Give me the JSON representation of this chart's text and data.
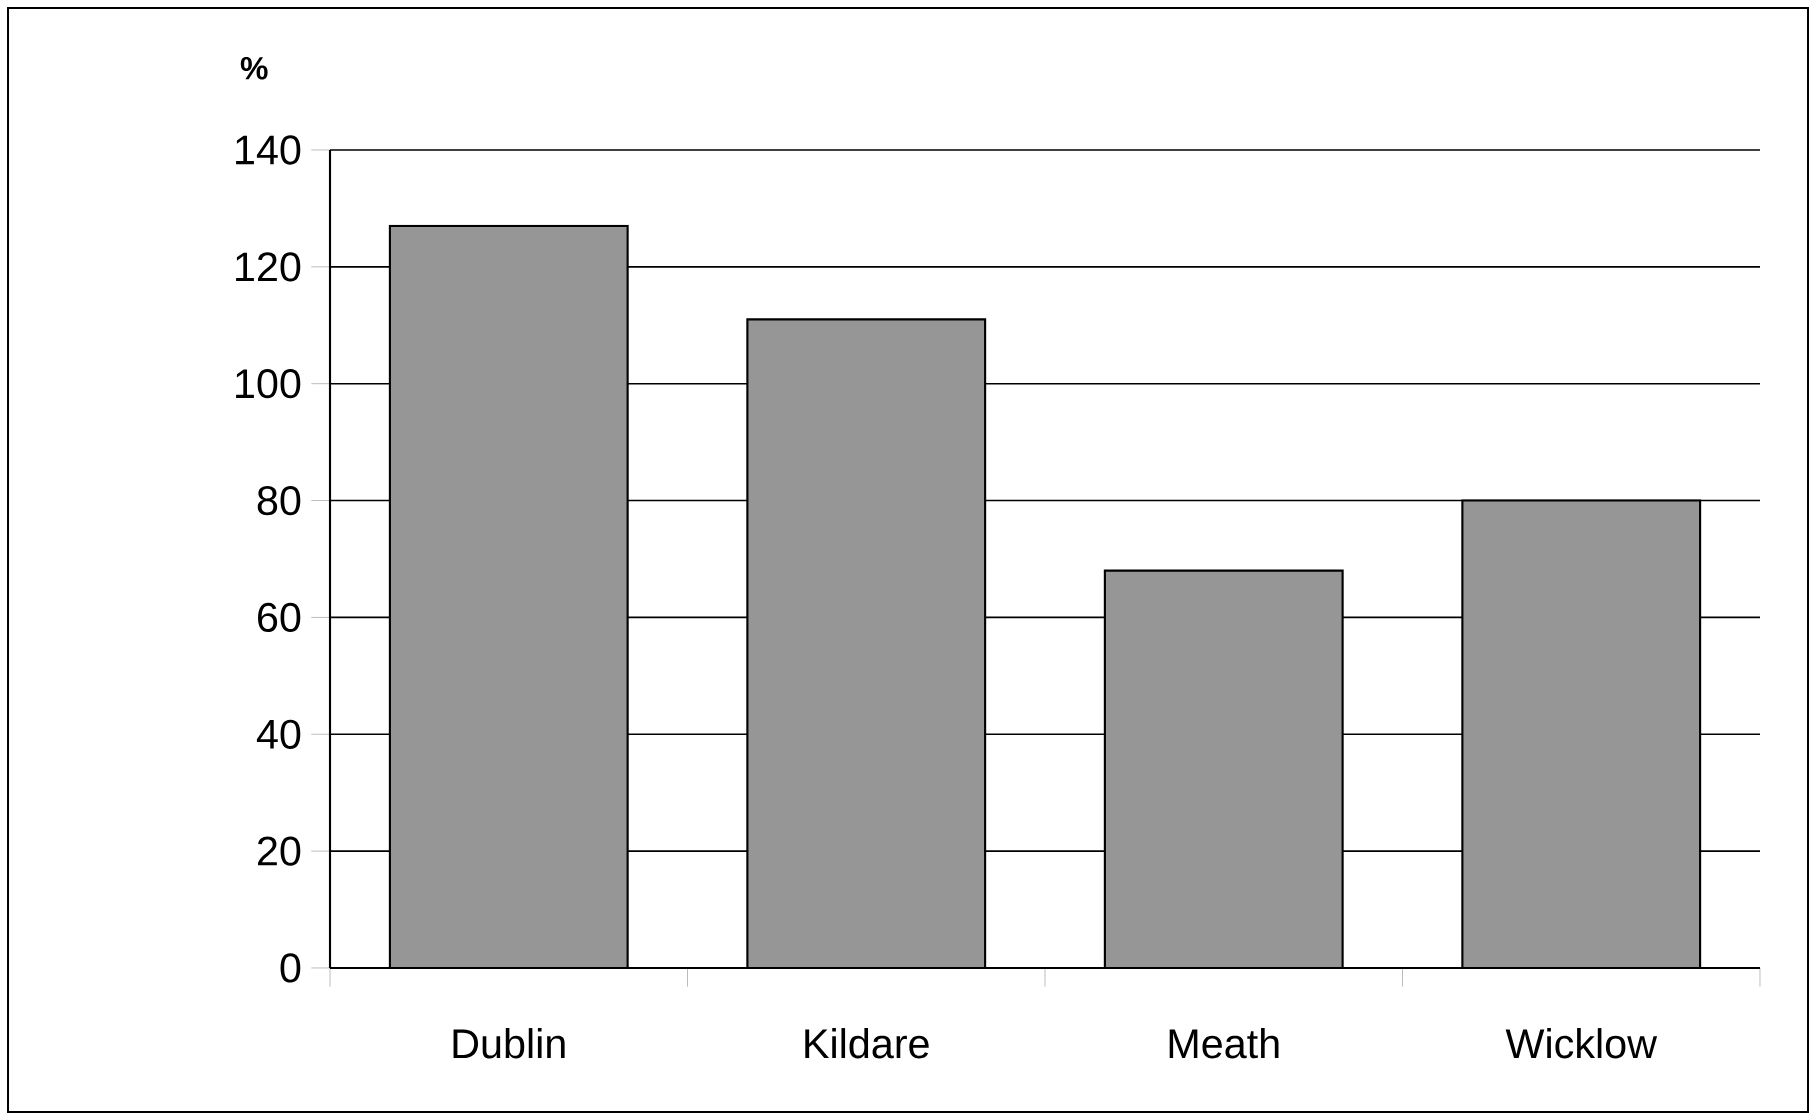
{
  "chart_data": {
    "type": "bar",
    "ylabel": "%",
    "categories": [
      "Dublin",
      "Kildare",
      "Meath",
      "Wicklow"
    ],
    "values": [
      127,
      111,
      68,
      80
    ],
    "color": "#969696",
    "ylim": [
      0,
      140
    ],
    "yticks": [
      0,
      20,
      40,
      60,
      80,
      100,
      120,
      140
    ],
    "grid": "y"
  }
}
